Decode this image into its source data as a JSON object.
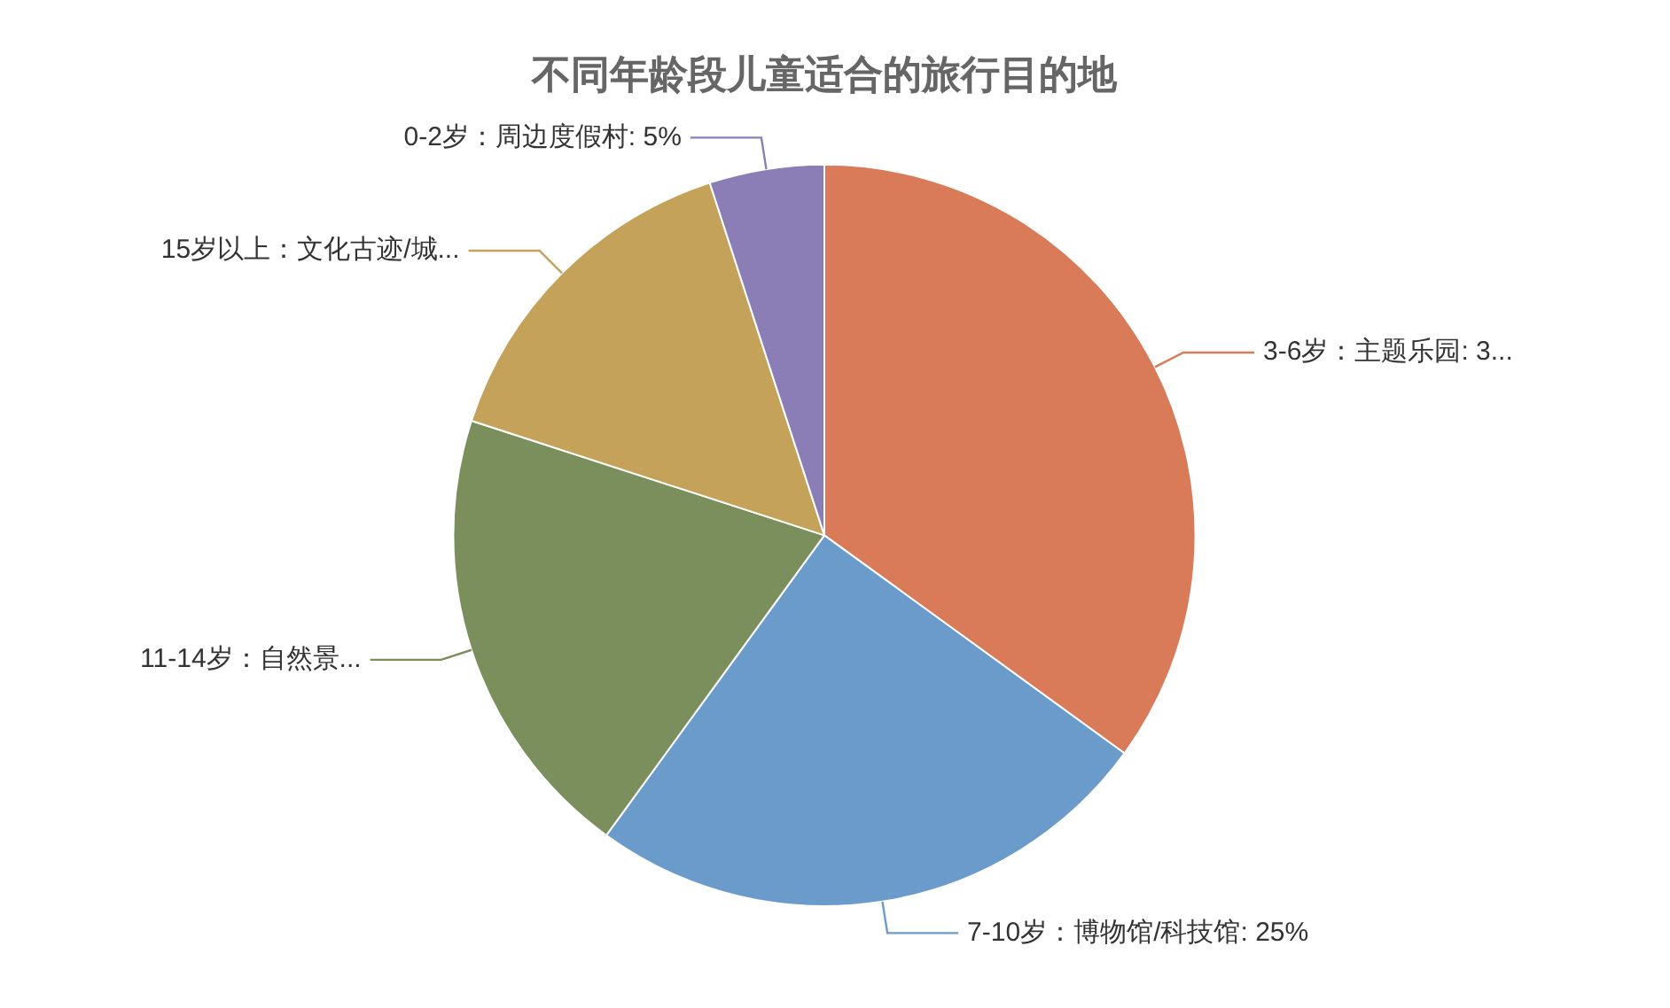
{
  "chart_data": {
    "type": "pie",
    "title": "不同年龄段儿童适合的旅行目的地",
    "categories": [
      "3-6岁：主题乐园",
      "7-10岁：博物馆/科技馆",
      "11-14岁：自然景...",
      "15岁以上：文化古迹/城...",
      "0-2岁：周边度假村"
    ],
    "values": [
      35,
      25,
      20,
      15,
      5
    ],
    "value_labels": [
      "3...",
      "25%",
      null,
      null,
      "5%"
    ],
    "colors": [
      "#d97a58",
      "#6a9bcb",
      "#7a8f5c",
      "#c4a25a",
      "#8b7db5"
    ],
    "legend": false
  }
}
